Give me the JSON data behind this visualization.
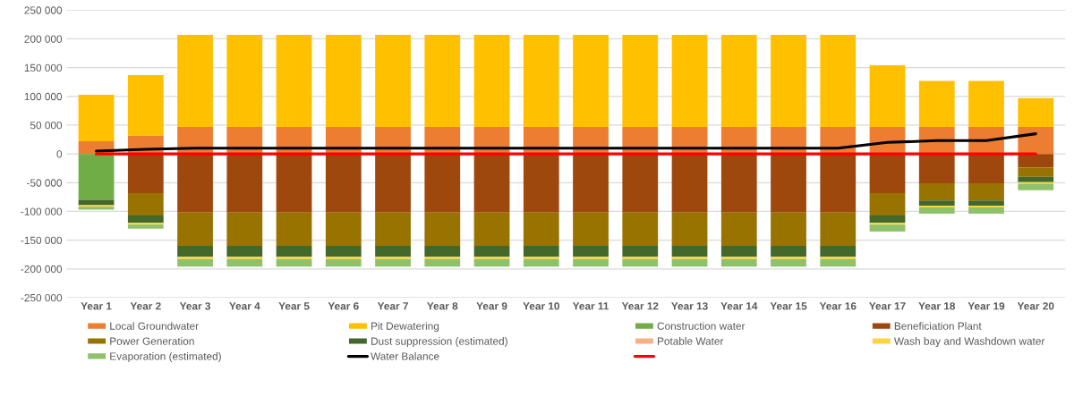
{
  "chart_data": {
    "type": "bar",
    "stacked": true,
    "categories": [
      "Year 1",
      "Year 2",
      "Year 3",
      "Year 4",
      "Year 5",
      "Year 6",
      "Year 7",
      "Year 8",
      "Year 9",
      "Year 10",
      "Year 11",
      "Year 12",
      "Year 13",
      "Year 14",
      "Year 15",
      "Year 16",
      "Year 17",
      "Year 18",
      "Year 19",
      "Year 20"
    ],
    "series": [
      {
        "name": "Local Groundwater",
        "color": "#ed7d31",
        "values": [
          22000,
          32000,
          47000,
          47000,
          47000,
          47000,
          47000,
          47000,
          47000,
          47000,
          47000,
          47000,
          47000,
          47000,
          47000,
          47000,
          47000,
          47000,
          47000,
          47000
        ]
      },
      {
        "name": "Pit Dewatering",
        "color": "#ffc000",
        "values": [
          81000,
          105000,
          160000,
          160000,
          160000,
          160000,
          160000,
          160000,
          160000,
          160000,
          160000,
          160000,
          160000,
          160000,
          160000,
          160000,
          107000,
          80000,
          80000,
          50000
        ]
      },
      {
        "name": "Construction water",
        "color": "#70ad47",
        "values": [
          -80000,
          null,
          null,
          null,
          null,
          null,
          null,
          null,
          null,
          null,
          null,
          null,
          null,
          null,
          null,
          null,
          null,
          null,
          null,
          null
        ]
      },
      {
        "name": "Beneficiation Plant",
        "color": "#9e480e",
        "values": [
          null,
          -68000,
          -102000,
          -102000,
          -102000,
          -102000,
          -102000,
          -102000,
          -102000,
          -102000,
          -102000,
          -102000,
          -102000,
          -102000,
          -102000,
          -102000,
          -68000,
          -51000,
          -51000,
          -24000
        ]
      },
      {
        "name": "Power Generation",
        "color": "#997300",
        "values": [
          null,
          -39000,
          -58000,
          -58000,
          -58000,
          -58000,
          -58000,
          -58000,
          -58000,
          -58000,
          -58000,
          -58000,
          -58000,
          -58000,
          -58000,
          -58000,
          -39000,
          -30000,
          -30000,
          -16000
        ]
      },
      {
        "name": "Dust suppression (estimated)",
        "color": "#43682b",
        "values": [
          -9000,
          -13000,
          -19000,
          -19000,
          -19000,
          -19000,
          -19000,
          -19000,
          -19000,
          -19000,
          -19000,
          -19000,
          -19000,
          -19000,
          -19000,
          -19000,
          -13000,
          -9000,
          -9000,
          -9000
        ]
      },
      {
        "name": "Potable Water",
        "color": "#f4b183",
        "values": [
          null,
          null,
          null,
          null,
          null,
          null,
          null,
          null,
          null,
          null,
          null,
          null,
          null,
          null,
          null,
          null,
          null,
          null,
          null,
          null
        ]
      },
      {
        "name": "Wash bay and Washdown water",
        "color": "#ffd33f",
        "values": [
          -3000,
          -3000,
          -4000,
          -4000,
          -4000,
          -4000,
          -4000,
          -4000,
          -4000,
          -4000,
          -4000,
          -4000,
          -4000,
          -4000,
          -4000,
          -4000,
          -3000,
          -3000,
          -3000,
          -3000
        ]
      },
      {
        "name": "Evaporation (estimated)",
        "color": "#8fc16a",
        "values": [
          -5000,
          -7000,
          -13000,
          -13000,
          -13000,
          -13000,
          -13000,
          -13000,
          -13000,
          -13000,
          -13000,
          -13000,
          -13000,
          -13000,
          -13000,
          -13000,
          -12000,
          -11000,
          -11000,
          -11000
        ]
      },
      {
        "name": "Water Balance",
        "type": "line",
        "color": "#000000",
        "values": [
          5000,
          8000,
          10000,
          10000,
          10000,
          10000,
          10000,
          10000,
          10000,
          10000,
          10000,
          10000,
          10000,
          10000,
          10000,
          10000,
          20000,
          23000,
          23000,
          35000
        ]
      },
      {
        "type": "line",
        "color": "#ff0000",
        "values": [
          0,
          0,
          0,
          0,
          0,
          0,
          0,
          0,
          0,
          0,
          0,
          0,
          0,
          0,
          0,
          0,
          0,
          0,
          0,
          0
        ]
      }
    ],
    "ylim": [
      -250000,
      250000
    ],
    "yticks": [
      {
        "value": -250000,
        "label": "-250 000"
      },
      {
        "value": -200000,
        "label": "-200 000"
      },
      {
        "value": -150000,
        "label": "-150 000"
      },
      {
        "value": -100000,
        "label": "-100 000"
      },
      {
        "value": -50000,
        "label": "-50 000"
      },
      {
        "value": 0,
        "label": "0"
      },
      {
        "value": 50000,
        "label": "50 000"
      },
      {
        "value": 100000,
        "label": "100 000"
      },
      {
        "value": 150000,
        "label": "150 000"
      },
      {
        "value": 200000,
        "label": "200 000"
      },
      {
        "value": 250000,
        "label": "250 000"
      }
    ],
    "grid": "y",
    "legend": "bottom"
  }
}
